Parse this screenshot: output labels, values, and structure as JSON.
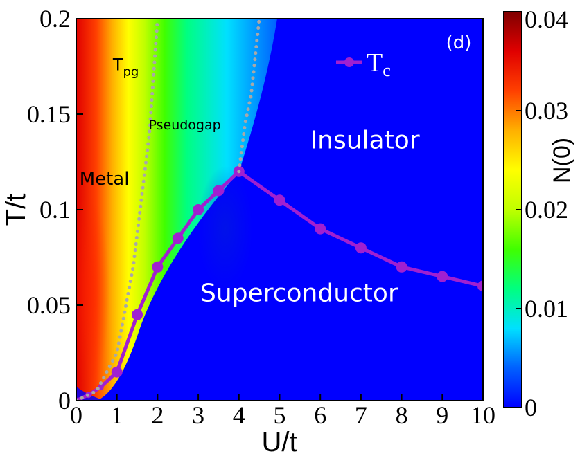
{
  "chart_data": {
    "type": "heatmap",
    "panel_label": "(d)",
    "xlabel": "U/t",
    "ylabel": "T/t",
    "xlim": [
      0,
      10
    ],
    "ylim": [
      0,
      0.2
    ],
    "x_ticks": [
      "0",
      "1",
      "2",
      "3",
      "4",
      "5",
      "6",
      "7",
      "8",
      "9",
      "10"
    ],
    "y_ticks": [
      "0",
      "0.05",
      "0.1",
      "0.15",
      "0.2"
    ],
    "colorbar": {
      "label": "N(0)",
      "range": [
        0,
        0.04
      ],
      "ticks": [
        "0",
        "0.01",
        "0.02",
        "0.03",
        "0.04"
      ],
      "colormap": [
        "#0000ff",
        "#0060ff",
        "#00e0ff",
        "#00ff80",
        "#40ff00",
        "#c0ff00",
        "#ffff00",
        "#ffb000",
        "#ff4000",
        "#e00000",
        "#800000"
      ]
    },
    "series": [
      {
        "name": "Tc",
        "legend_main": "T",
        "legend_sub": "c",
        "color": "#a020d0",
        "x": [
          0.0,
          0.3,
          0.6,
          1.0,
          1.5,
          2.0,
          2.5,
          3.0,
          3.5,
          4.0,
          5.0,
          6.0,
          7.0,
          8.0,
          9.0,
          10.0
        ],
        "y": [
          0.0,
          0.003,
          0.007,
          0.015,
          0.045,
          0.07,
          0.085,
          0.1,
          0.11,
          0.12,
          0.105,
          0.09,
          0.08,
          0.07,
          0.065,
          0.06
        ]
      },
      {
        "name": "Tpg",
        "style": "dotted",
        "color": "#a8a8a8",
        "x": [
          0.0,
          0.5,
          1.0,
          1.4,
          1.8,
          2.0
        ],
        "y": [
          0.0,
          0.005,
          0.025,
          0.07,
          0.14,
          0.2
        ]
      },
      {
        "name": "crossover",
        "style": "dotted",
        "color": "#a8a8a8",
        "x": [
          4.0,
          4.15,
          4.3,
          4.4,
          4.5
        ],
        "y": [
          0.12,
          0.145,
          0.16,
          0.18,
          0.2
        ]
      }
    ],
    "annotations": [
      {
        "text": "T",
        "sub": "pg",
        "x": 0.9,
        "y": 0.173,
        "tone": "dark"
      },
      {
        "text": "Pseudogap",
        "x": 1.78,
        "y": 0.142,
        "tone": "dark"
      },
      {
        "text": "Metal",
        "x": 0.08,
        "y": 0.113,
        "tone": "dark"
      },
      {
        "text": "Insulator",
        "x": 5.75,
        "y": 0.132,
        "tone": "light"
      },
      {
        "text": "Superconductor",
        "x": 3.05,
        "y": 0.052,
        "tone": "light"
      }
    ]
  }
}
